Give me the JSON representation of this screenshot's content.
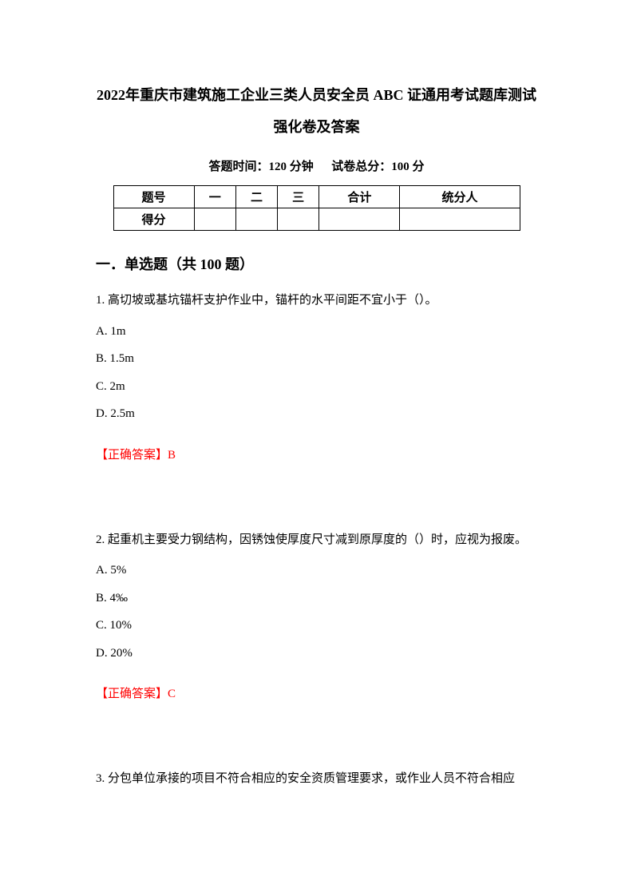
{
  "title": "2022年重庆市建筑施工企业三类人员安全员 ABC 证通用考试题库测试强化卷及答案",
  "subtitle_prefix": "答题时间：",
  "subtitle_time": "120 分钟",
  "subtitle_spacer": "　",
  "subtitle_total_prefix": "试卷总分：",
  "subtitle_total": "100 分",
  "table": {
    "header": [
      "题号",
      "一",
      "二",
      "三",
      "合计",
      "统分人"
    ],
    "row_label": "得分"
  },
  "section_heading": "一．单选题（共 100 题）",
  "questions": [
    {
      "stem": "1. 高切坡或基坑锚杆支护作业中，锚杆的水平间距不宜小于（）。",
      "options": [
        "A. 1m",
        "B. 1.5m",
        "C. 2m",
        "D. 2.5m"
      ],
      "answer_label": "【正确答案】",
      "answer": "B"
    },
    {
      "stem": "2. 起重机主要受力钢结构，因锈蚀使厚度尺寸减到原厚度的（）时，应视为报废。",
      "options": [
        "A. 5%",
        "B. 4‰",
        "C. 10%",
        "D. 20%"
      ],
      "answer_label": "【正确答案】",
      "answer": "C"
    }
  ],
  "q3_stem": "3. 分包单位承接的项目不符合相应的安全资质管理要求，或作业人员不符合相应",
  "colors": {
    "text": "#000000",
    "answer": "#ff0000",
    "background": "#ffffff",
    "border": "#000000"
  },
  "fontsize": {
    "title": 18,
    "subtitle": 15,
    "body": 15,
    "section": 18
  }
}
